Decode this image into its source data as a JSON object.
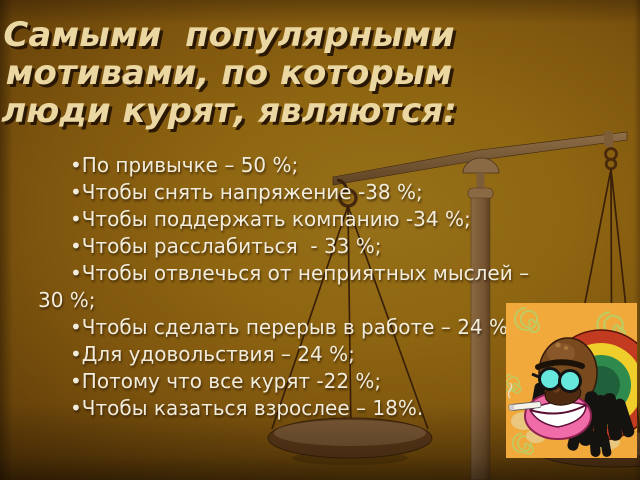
{
  "slide": {
    "title": "Самыми  популярными мотивами, по которым люди курят, являются:",
    "bullet_char": "•",
    "bullets": [
      "По привычке – 50 %;",
      "Чтобы снять напряжение -38 %;",
      "Чтобы поддержать компанию -34 %;",
      "Чтобы расслабиться  - 33 %;",
      "Чтобы отвлечься от неприятных мыслей – 30 %;",
      "Чтобы сделать перерыв в работе – 24 %;",
      "Для удовольствия – 24 %;",
      "Потому что все курят -22 %;",
      "Чтобы казаться взрослее – 18%."
    ],
    "stats": [
      {
        "motive": "По привычке",
        "percent": 50
      },
      {
        "motive": "Чтобы снять напряжение",
        "percent": 38
      },
      {
        "motive": "Чтобы поддержать компанию",
        "percent": 34
      },
      {
        "motive": "Чтобы расслабиться",
        "percent": 33
      },
      {
        "motive": "Чтобы отвлечься от неприятных мыслей",
        "percent": 30
      },
      {
        "motive": "Чтобы сделать перерыв в работе",
        "percent": 24
      },
      {
        "motive": "Для удовольствия",
        "percent": 24
      },
      {
        "motive": "Потому что все курят",
        "percent": 22
      },
      {
        "motive": "Чтобы казаться взрослее",
        "percent": 18
      }
    ],
    "colors": {
      "background_gold": "#8E6511",
      "background_dark": "#341D05",
      "title_text": "#EBD7A2",
      "title_shadow": "#2B1803",
      "body_text": "#F2ECDC",
      "scale_wood": "#84643E",
      "cartoon_bg": "#F1A93C",
      "hat_green": "#2F8A4E",
      "hat_yellow": "#EFCE2C",
      "hat_red": "#C23A20",
      "lips_pink": "#F06CA8",
      "glasses_teal": "#66E8DC"
    },
    "illustrations": {
      "scale": "balance-scale-watermark",
      "cartoon": "rasta-smoker-cartoon"
    }
  }
}
